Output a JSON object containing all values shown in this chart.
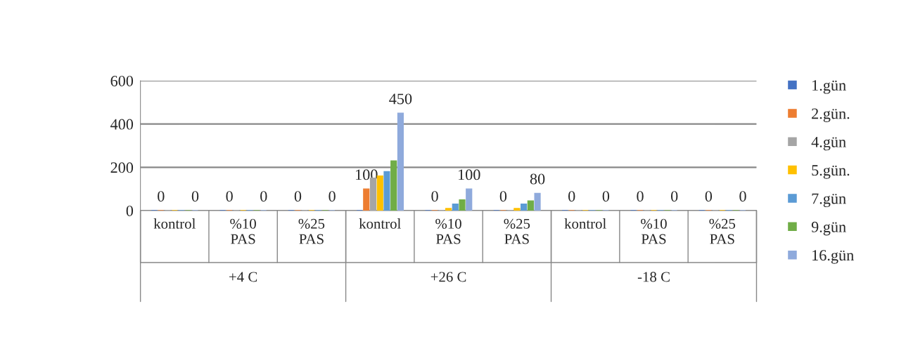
{
  "chart_data": {
    "type": "bar",
    "categories": [
      "kontrol",
      "%10 PAS",
      "%25 PAS",
      "kontrol",
      "%10 PAS",
      "%25 PAS",
      "kontrol",
      "%10 PAS",
      "%25 PAS"
    ],
    "annotations": [
      "+4 C",
      "+26 C",
      "-18 C"
    ],
    "series": [
      {
        "name": "1.gün",
        "color": "#4472c4",
        "values": [
          0,
          0,
          0,
          0,
          0,
          0,
          0,
          0,
          0
        ]
      },
      {
        "name": "2.gün.",
        "color": "#ed7d31",
        "values": [
          0,
          0,
          0,
          100,
          0,
          0,
          0,
          0,
          0
        ],
        "value_labels": [
          "0",
          "0",
          "0",
          "100",
          "0",
          "0",
          "0",
          "0",
          "0"
        ]
      },
      {
        "name": "4.gün",
        "color": "#a5a5a5",
        "values": [
          0,
          0,
          0,
          150,
          0,
          0,
          0,
          0,
          0
        ]
      },
      {
        "name": "5.gün.",
        "color": "#ffc000",
        "values": [
          0,
          0,
          0,
          160,
          10,
          10,
          0,
          0,
          0
        ]
      },
      {
        "name": "7.gün",
        "color": "#5b9bd5",
        "values": [
          0,
          0,
          0,
          180,
          30,
          30,
          0,
          0,
          0
        ]
      },
      {
        "name": "9.gün",
        "color": "#70ad47",
        "values": [
          0,
          0,
          0,
          230,
          50,
          45,
          0,
          0,
          0
        ]
      },
      {
        "name": "16.gün",
        "color": "#8faadc",
        "values": [
          0,
          0,
          0,
          450,
          100,
          80,
          0,
          0,
          0
        ],
        "value_labels": [
          "0",
          "0",
          "0",
          "450",
          "100",
          "80",
          "0",
          "0",
          "0"
        ]
      }
    ],
    "ylim": [
      0,
      600
    ],
    "yticks": [
      0,
      200,
      400,
      600
    ],
    "grid": "y",
    "legend": "right",
    "marker": "square"
  }
}
